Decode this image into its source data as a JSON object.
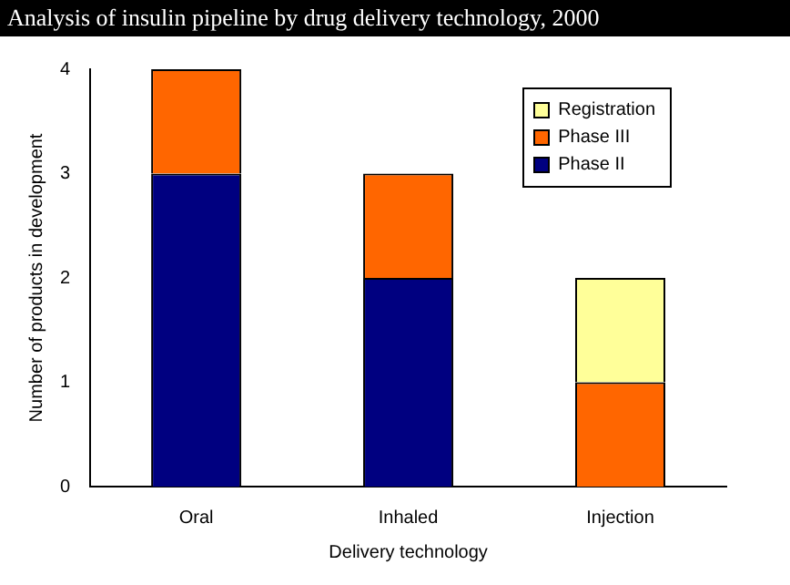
{
  "chart_data": {
    "type": "bar",
    "title": "Analysis of insulin pipeline by drug delivery technology, 2000",
    "xlabel": "Delivery technology",
    "ylabel": "Number of products in development",
    "categories": [
      "Oral",
      "Inhaled",
      "Injection"
    ],
    "stacked": true,
    "series": [
      {
        "name": "Phase II",
        "color": "#000080",
        "values": [
          3,
          2,
          0
        ]
      },
      {
        "name": "Phase III",
        "color": "#ff6600",
        "values": [
          1,
          1,
          1
        ]
      },
      {
        "name": "Registration",
        "color": "#ffff99",
        "values": [
          0,
          0,
          1
        ]
      }
    ],
    "ylim": [
      0,
      4
    ],
    "yticks": [
      0,
      1,
      2,
      3,
      4
    ],
    "grid": false,
    "legend": "top right"
  }
}
